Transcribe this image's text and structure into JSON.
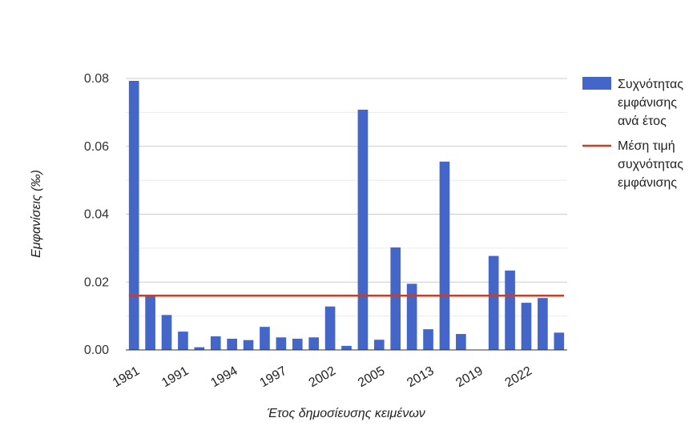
{
  "chart_data": {
    "type": "bar",
    "xlabel": "Έτος δημοσίευσης κειμένων",
    "ylabel": "Εμφανίσεις (‰)",
    "ylim": [
      0,
      0.08
    ],
    "y_ticks": [
      "0.00",
      "0.02",
      "0.04",
      "0.06",
      "0.08"
    ],
    "grid": true,
    "legend_position": "right",
    "x_tick_labels": [
      "1981",
      "1991",
      "1994",
      "1997",
      "2002",
      "2005",
      "2013",
      "2019",
      "2022"
    ],
    "bar_values": [
      0.0793,
      0.016,
      0.0103,
      0.0054,
      0.0008,
      0.004,
      0.0033,
      0.0029,
      0.0068,
      0.0037,
      0.0033,
      0.0037,
      0.0128,
      0.0012,
      0.0708,
      0.003,
      0.0302,
      0.0195,
      0.0061,
      0.0555,
      0.0047,
      0.0,
      0.0277,
      0.0234,
      0.0139,
      0.0153,
      0.0051
    ],
    "mean_value": 0.016,
    "series": [
      {
        "name": "Συχνότητας εμφάνισης ανά έτος",
        "legend_lines": [
          "Συχνότητας",
          "εμφάνισης",
          "ανά έτος"
        ],
        "color": "#4366c8",
        "kind": "bar"
      },
      {
        "name": "Μέση τιμή συχνότητας εμφάνισης",
        "legend_lines": [
          "Μέση τιμή",
          "συχνότητας",
          "εμφάνισης"
        ],
        "color": "#cc3d22",
        "kind": "line"
      }
    ],
    "gridline_color": "#cccccc",
    "minor_gridline_color": "#ebebeb"
  }
}
